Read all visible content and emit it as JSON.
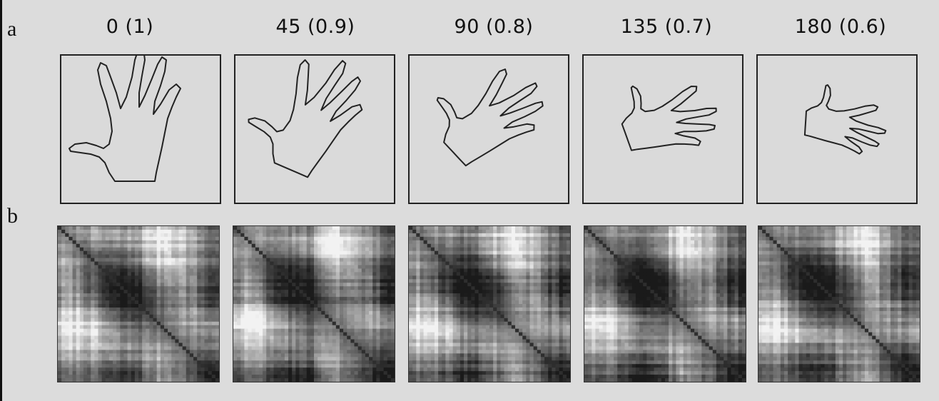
{
  "figure": {
    "row_labels": {
      "a": "a",
      "b": "b"
    },
    "columns": [
      {
        "title": "0  (1)",
        "angle": 0,
        "scale": 1.0
      },
      {
        "title": "45  (0.9)",
        "angle": 45,
        "scale": 0.9
      },
      {
        "title": "90  (0.8)",
        "angle": 90,
        "scale": 0.8
      },
      {
        "title": "135  (0.7)",
        "angle": 135,
        "scale": 0.7
      },
      {
        "title": "180  (0.6)",
        "angle": 180,
        "scale": 0.6
      }
    ]
  }
}
